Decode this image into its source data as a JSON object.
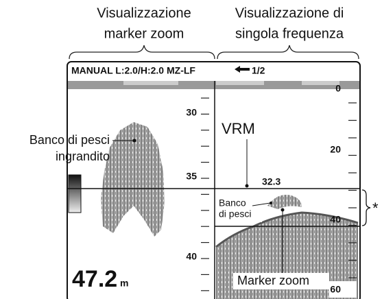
{
  "headings": {
    "left": [
      "Visualizzazione",
      "marker zoom"
    ],
    "right": [
      "Visualizzazione di",
      "singola frequenza"
    ]
  },
  "screen": {
    "header": "MANUAL L:2.0/H:2.0 MZ-LF",
    "page": "1/2",
    "left_scale": [
      "30",
      "35",
      "40"
    ],
    "right_scale": [
      "0",
      "20",
      "40",
      "60"
    ],
    "depth": "47.2",
    "depth_unit": "m",
    "vrm_value": "32.3"
  },
  "callouts": {
    "fish_zoomed": [
      "Banco di pesci",
      "ingrandito"
    ],
    "vrm": "VRM",
    "fish": [
      "Banco",
      "di pesci"
    ],
    "marker_zoom": "Marker zoom",
    "asterisk": "*"
  }
}
